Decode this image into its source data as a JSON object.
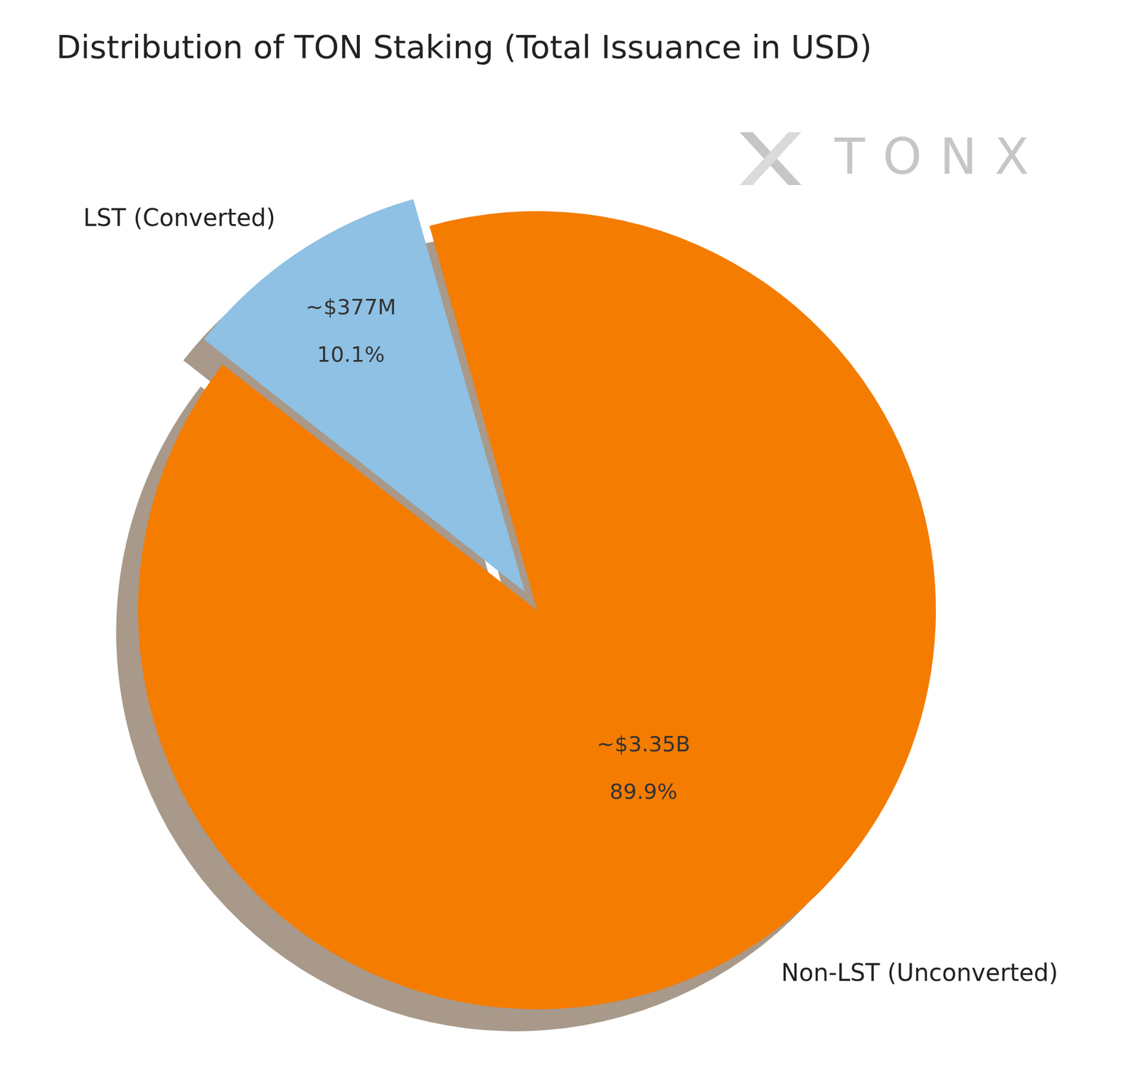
{
  "chart_data": {
    "type": "pie",
    "title": "Distribution of TON Staking (Total Issuance in USD)",
    "watermark": "TONX",
    "categories": [
      "LST (Converted)",
      "Non-LST (Unconverted)"
    ],
    "values": [
      10.1,
      89.9
    ],
    "value_labels": [
      "10.1%",
      "89.9%"
    ],
    "amounts": [
      377000000,
      3350000000
    ],
    "amount_labels": [
      "~$377M",
      "~$3.35B"
    ],
    "colors": [
      "#8ec1e4",
      "#f47c00"
    ],
    "data_labels": true
  }
}
